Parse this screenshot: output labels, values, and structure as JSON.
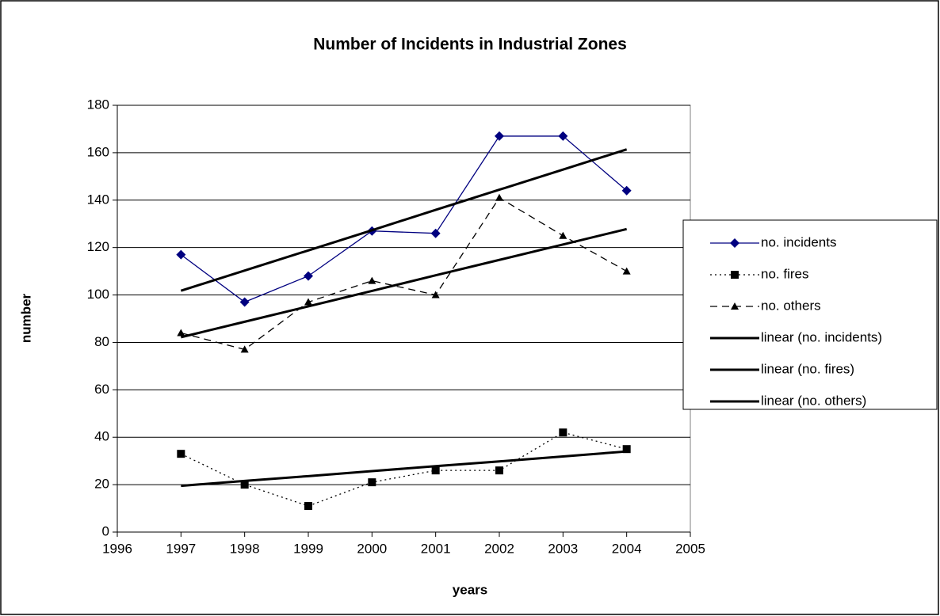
{
  "chart_data": {
    "type": "line",
    "title": "Number of Incidents in Industrial Zones",
    "xlabel": "years",
    "ylabel": "number",
    "x": [
      1997,
      1998,
      1999,
      2000,
      2001,
      2002,
      2003,
      2004
    ],
    "xlim": [
      1996,
      2005
    ],
    "xticks": [
      1996,
      1997,
      1998,
      1999,
      2000,
      2001,
      2002,
      2003,
      2004,
      2005
    ],
    "ylim": [
      0,
      180
    ],
    "yticks": [
      0,
      20,
      40,
      60,
      80,
      100,
      120,
      140,
      160,
      180
    ],
    "grid": true,
    "legend": "right",
    "series": [
      {
        "name": "no. incidents",
        "color": "#000080",
        "marker": "diamond",
        "dash": "solid",
        "width": 1.3,
        "values": [
          117,
          97,
          108,
          127,
          126,
          167,
          167,
          144
        ]
      },
      {
        "name": "no. fires",
        "color": "#000000",
        "marker": "square",
        "dash": "dotted",
        "width": 1.3,
        "values": [
          33,
          20,
          11,
          21,
          26,
          26,
          42,
          35
        ]
      },
      {
        "name": "no. others",
        "color": "#000000",
        "marker": "triangle",
        "dash": "dashed",
        "width": 1.3,
        "values": [
          84,
          77,
          97,
          106,
          100,
          141,
          125,
          110
        ]
      },
      {
        "name": "linear (no. incidents)",
        "color": "#000000",
        "marker": "none",
        "dash": "solid",
        "width": 3,
        "values": [
          101.8,
          110.3,
          118.8,
          127.3,
          135.9,
          144.4,
          152.9,
          161.4
        ]
      },
      {
        "name": "linear (no. fires)",
        "color": "#000000",
        "marker": "none",
        "dash": "solid",
        "width": 3,
        "values": [
          19.5,
          21.6,
          23.6,
          25.7,
          27.8,
          29.8,
          31.9,
          34.0
        ]
      },
      {
        "name": "linear (no. others)",
        "color": "#000000",
        "marker": "none",
        "dash": "solid",
        "width": 3,
        "values": [
          82.2,
          88.7,
          95.2,
          101.7,
          108.3,
          114.8,
          121.3,
          127.8
        ]
      }
    ]
  }
}
